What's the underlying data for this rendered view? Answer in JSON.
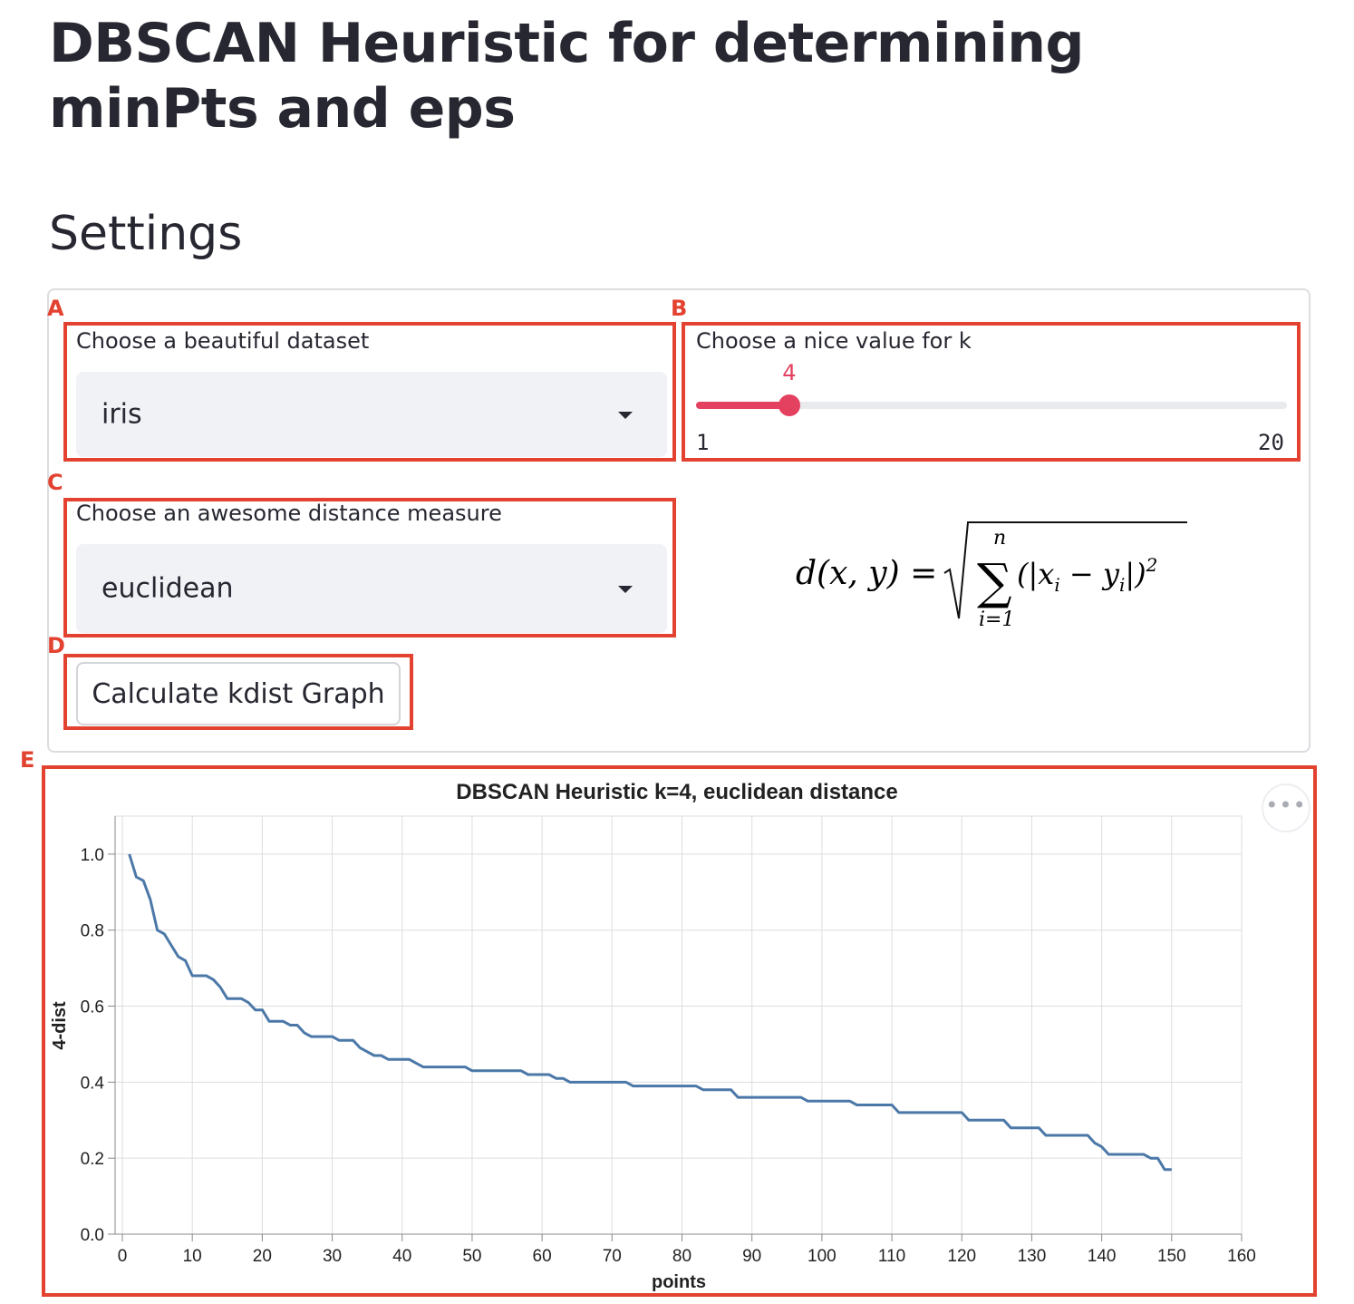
{
  "page": {
    "title": "DBSCAN Heuristic for determining minPts and eps",
    "section": "Settings"
  },
  "annotations": [
    "A",
    "B",
    "C",
    "D",
    "E"
  ],
  "dataset": {
    "label": "Choose a beautiful dataset",
    "value": "iris"
  },
  "k_slider": {
    "label": "Choose a nice value for k",
    "value": "4",
    "value_fraction": 0.1579,
    "min": "1",
    "max": "20"
  },
  "distance": {
    "label": "Choose an awesome distance measure",
    "value": "euclidean"
  },
  "formula": {
    "lhs": "d(x, y) =",
    "sum_top": "n",
    "sum_bottom": "i=1",
    "body": "(|x",
    "sub_i": "i",
    "minus": " − y",
    "close": "|)",
    "power": "2"
  },
  "button": {
    "label": "Calculate kdist Graph"
  },
  "menu_icon": "more-horizontal-icon",
  "colors": {
    "accent": "#e4405f",
    "annotation": "#e2422f",
    "line": "#4c78a8"
  },
  "chart_data": {
    "type": "line",
    "title": "DBSCAN Heuristic k=4, euclidean distance",
    "xlabel": "points",
    "ylabel": "4-dist",
    "xlim": [
      0,
      160
    ],
    "ylim": [
      0,
      1.1
    ],
    "xticks": [
      "0",
      "10",
      "20",
      "30",
      "40",
      "50",
      "60",
      "70",
      "80",
      "90",
      "100",
      "110",
      "120",
      "130",
      "140",
      "150",
      "160"
    ],
    "yticks": [
      "0.0",
      "0.2",
      "0.4",
      "0.6",
      "0.8",
      "1.0"
    ],
    "grid": true,
    "series": [
      {
        "points": [
          [
            1,
            1.0
          ],
          [
            2,
            0.94
          ],
          [
            3,
            0.93
          ],
          [
            4,
            0.88
          ],
          [
            5,
            0.8
          ],
          [
            6,
            0.79
          ],
          [
            7,
            0.76
          ],
          [
            8,
            0.73
          ],
          [
            9,
            0.72
          ],
          [
            10,
            0.68
          ],
          [
            11,
            0.68
          ],
          [
            12,
            0.68
          ],
          [
            13,
            0.67
          ],
          [
            14,
            0.65
          ],
          [
            15,
            0.62
          ],
          [
            16,
            0.62
          ],
          [
            17,
            0.62
          ],
          [
            18,
            0.61
          ],
          [
            19,
            0.59
          ],
          [
            20,
            0.59
          ],
          [
            21,
            0.56
          ],
          [
            22,
            0.56
          ],
          [
            23,
            0.56
          ],
          [
            24,
            0.55
          ],
          [
            25,
            0.55
          ],
          [
            26,
            0.53
          ],
          [
            27,
            0.52
          ],
          [
            28,
            0.52
          ],
          [
            29,
            0.52
          ],
          [
            30,
            0.52
          ],
          [
            31,
            0.51
          ],
          [
            32,
            0.51
          ],
          [
            33,
            0.51
          ],
          [
            34,
            0.49
          ],
          [
            35,
            0.48
          ],
          [
            36,
            0.47
          ],
          [
            37,
            0.47
          ],
          [
            38,
            0.46
          ],
          [
            39,
            0.46
          ],
          [
            40,
            0.46
          ],
          [
            41,
            0.46
          ],
          [
            42,
            0.45
          ],
          [
            43,
            0.44
          ],
          [
            44,
            0.44
          ],
          [
            45,
            0.44
          ],
          [
            46,
            0.44
          ],
          [
            47,
            0.44
          ],
          [
            48,
            0.44
          ],
          [
            49,
            0.44
          ],
          [
            50,
            0.43
          ],
          [
            51,
            0.43
          ],
          [
            52,
            0.43
          ],
          [
            53,
            0.43
          ],
          [
            54,
            0.43
          ],
          [
            55,
            0.43
          ],
          [
            56,
            0.43
          ],
          [
            57,
            0.43
          ],
          [
            58,
            0.42
          ],
          [
            59,
            0.42
          ],
          [
            60,
            0.42
          ],
          [
            61,
            0.42
          ],
          [
            62,
            0.41
          ],
          [
            63,
            0.41
          ],
          [
            64,
            0.4
          ],
          [
            65,
            0.4
          ],
          [
            66,
            0.4
          ],
          [
            67,
            0.4
          ],
          [
            68,
            0.4
          ],
          [
            69,
            0.4
          ],
          [
            70,
            0.4
          ],
          [
            71,
            0.4
          ],
          [
            72,
            0.4
          ],
          [
            73,
            0.39
          ],
          [
            74,
            0.39
          ],
          [
            75,
            0.39
          ],
          [
            76,
            0.39
          ],
          [
            77,
            0.39
          ],
          [
            78,
            0.39
          ],
          [
            79,
            0.39
          ],
          [
            80,
            0.39
          ],
          [
            81,
            0.39
          ],
          [
            82,
            0.39
          ],
          [
            83,
            0.38
          ],
          [
            84,
            0.38
          ],
          [
            85,
            0.38
          ],
          [
            86,
            0.38
          ],
          [
            87,
            0.38
          ],
          [
            88,
            0.36
          ],
          [
            89,
            0.36
          ],
          [
            90,
            0.36
          ],
          [
            91,
            0.36
          ],
          [
            92,
            0.36
          ],
          [
            93,
            0.36
          ],
          [
            94,
            0.36
          ],
          [
            95,
            0.36
          ],
          [
            96,
            0.36
          ],
          [
            97,
            0.36
          ],
          [
            98,
            0.35
          ],
          [
            99,
            0.35
          ],
          [
            100,
            0.35
          ],
          [
            101,
            0.35
          ],
          [
            102,
            0.35
          ],
          [
            103,
            0.35
          ],
          [
            104,
            0.35
          ],
          [
            105,
            0.34
          ],
          [
            106,
            0.34
          ],
          [
            107,
            0.34
          ],
          [
            108,
            0.34
          ],
          [
            109,
            0.34
          ],
          [
            110,
            0.34
          ],
          [
            111,
            0.32
          ],
          [
            112,
            0.32
          ],
          [
            113,
            0.32
          ],
          [
            114,
            0.32
          ],
          [
            115,
            0.32
          ],
          [
            116,
            0.32
          ],
          [
            117,
            0.32
          ],
          [
            118,
            0.32
          ],
          [
            119,
            0.32
          ],
          [
            120,
            0.32
          ],
          [
            121,
            0.3
          ],
          [
            122,
            0.3
          ],
          [
            123,
            0.3
          ],
          [
            124,
            0.3
          ],
          [
            125,
            0.3
          ],
          [
            126,
            0.3
          ],
          [
            127,
            0.28
          ],
          [
            128,
            0.28
          ],
          [
            129,
            0.28
          ],
          [
            130,
            0.28
          ],
          [
            131,
            0.28
          ],
          [
            132,
            0.26
          ],
          [
            133,
            0.26
          ],
          [
            134,
            0.26
          ],
          [
            135,
            0.26
          ],
          [
            136,
            0.26
          ],
          [
            137,
            0.26
          ],
          [
            138,
            0.26
          ],
          [
            139,
            0.24
          ],
          [
            140,
            0.23
          ],
          [
            141,
            0.21
          ],
          [
            142,
            0.21
          ],
          [
            143,
            0.21
          ],
          [
            144,
            0.21
          ],
          [
            145,
            0.21
          ],
          [
            146,
            0.21
          ],
          [
            147,
            0.2
          ],
          [
            148,
            0.2
          ],
          [
            149,
            0.17
          ],
          [
            150,
            0.17
          ]
        ]
      }
    ]
  }
}
